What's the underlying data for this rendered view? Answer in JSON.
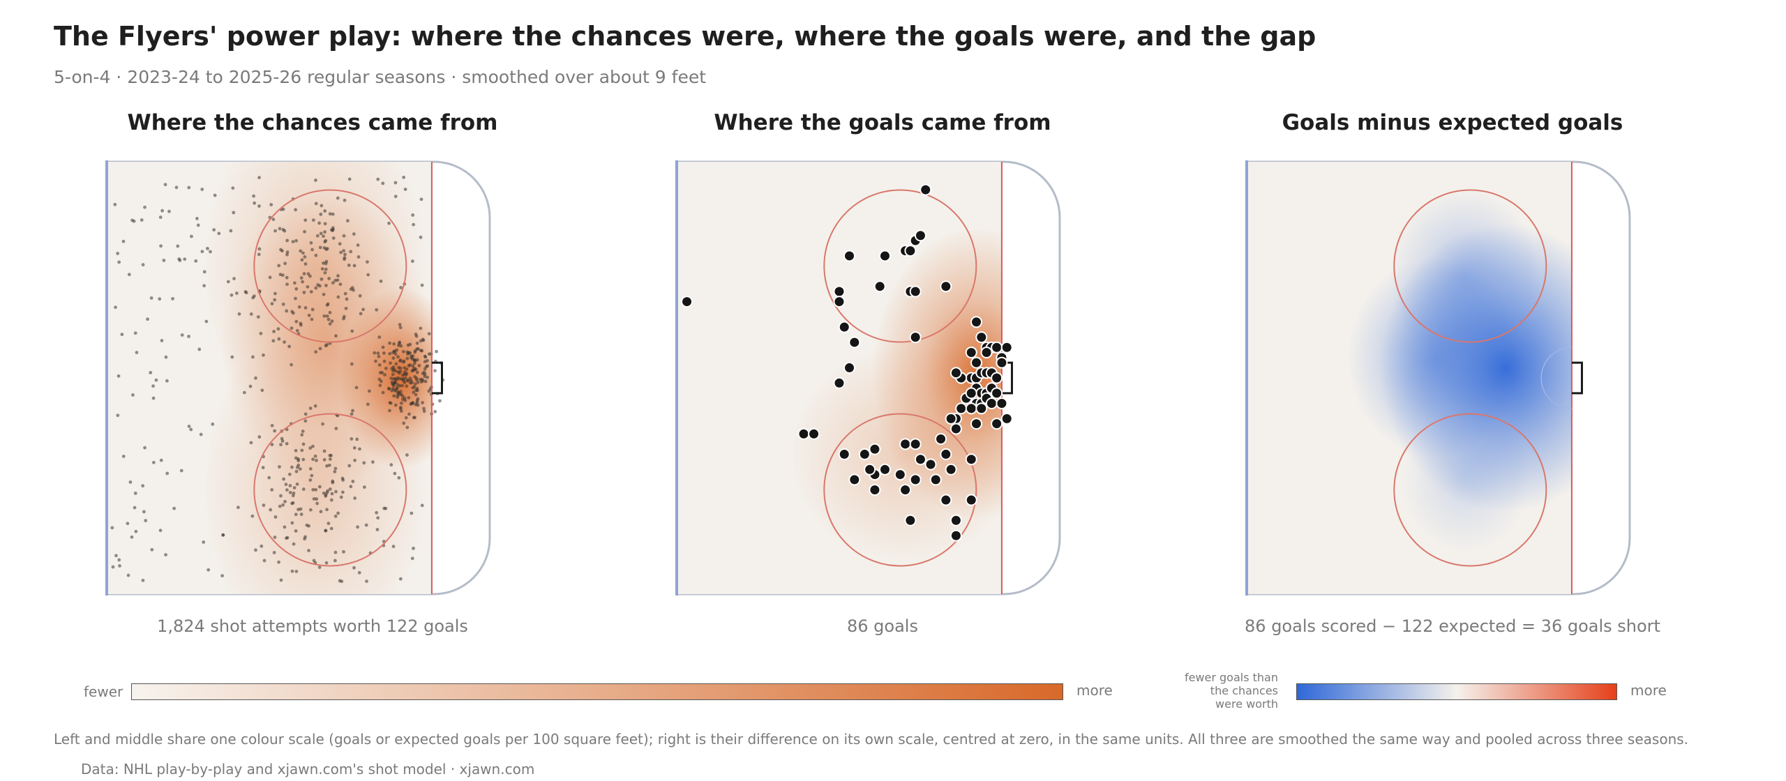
{
  "title": "The Flyers' power play: where the chances were, where the goals were, and the gap",
  "subtitle": "5-on-4 · 2023-24 to 2025-26 regular seasons · smoothed over about 9 feet",
  "panels": [
    {
      "title": "Where the chances came from",
      "caption": "1,824 shot attempts worth 122 goals"
    },
    {
      "title": "Where the goals came from",
      "caption": "86 goals"
    },
    {
      "title": "Goals minus expected goals",
      "caption": "86 goals scored − 122 expected = 36 goals short"
    }
  ],
  "legend_shared": {
    "low_label": "fewer",
    "high_label": "more",
    "colors": [
      "#f7f3ee",
      "#d8692a"
    ]
  },
  "legend_diff": {
    "low_label": "fewer goals than the chances were worth",
    "low_lines": [
      "fewer goals than",
      "the chances",
      "were worth"
    ],
    "high_label": "more",
    "colors": [
      "#2f68d8",
      "#f5f1ec",
      "#e5401a"
    ]
  },
  "footnote": "Left and middle share one colour scale (goals or expected goals per 100 square feet); right is their difference on its own scale, centred at zero, in the same units. All three are smoothed the same way and pooled across three seasons.",
  "source": "Data: NHL play-by-play and xjawn.com's shot model · xjawn.com",
  "colors": {
    "blue_line": "#8ea4d6",
    "goal_line": "#d45b5b",
    "faceoff_circle": "#d9776b",
    "boards": "#b4bcc8",
    "ice": "#f4f1ec",
    "heat": "#d8692a",
    "diff_negative": "#2f68d8"
  },
  "chart_data": [
    {
      "type": "scatter",
      "title": "Where the chances came from",
      "description_label": "1,824 shot attempts worth 122 goals",
      "shot_attempts": 1824,
      "expected_goals": 122,
      "units": "feet (x: distance from centre ice toward goal, y: lateral)",
      "xlim": [
        25,
        100
      ],
      "ylim": [
        -42.5,
        42.5
      ],
      "density_hotspots": [
        {
          "x": 83,
          "y": 0,
          "intensity": 1.0
        },
        {
          "x": 68,
          "y": 7,
          "intensity": 0.45
        },
        {
          "x": 66,
          "y": -22,
          "intensity": 0.3
        },
        {
          "x": 66,
          "y": 22,
          "intensity": 0.3
        }
      ]
    },
    {
      "type": "scatter",
      "title": "Where the goals came from",
      "description_label": "86 goals",
      "goals": 86,
      "units": "feet",
      "xlim": [
        25,
        100
      ],
      "ylim": [
        -42.5,
        42.5
      ],
      "points": [
        [
          74,
          37
        ],
        [
          72,
          27
        ],
        [
          73,
          28
        ],
        [
          70,
          25
        ],
        [
          71,
          25
        ],
        [
          66,
          24
        ],
        [
          59,
          24
        ],
        [
          78,
          18
        ],
        [
          65,
          18
        ],
        [
          71,
          17
        ],
        [
          57,
          17
        ],
        [
          57,
          15
        ],
        [
          72,
          17
        ],
        [
          27,
          15
        ],
        [
          58,
          10
        ],
        [
          84,
          11
        ],
        [
          72,
          8
        ],
        [
          60,
          7
        ],
        [
          85,
          8
        ],
        [
          59,
          2
        ],
        [
          86,
          6
        ],
        [
          87,
          6
        ],
        [
          86,
          5
        ],
        [
          88,
          6
        ],
        [
          90,
          6
        ],
        [
          83,
          5
        ],
        [
          89,
          4
        ],
        [
          89,
          3
        ],
        [
          84,
          3
        ],
        [
          57,
          -1
        ],
        [
          83,
          0
        ],
        [
          84,
          0
        ],
        [
          81,
          0
        ],
        [
          80,
          1
        ],
        [
          85,
          1
        ],
        [
          86,
          1
        ],
        [
          87,
          1
        ],
        [
          88,
          0
        ],
        [
          84,
          -2
        ],
        [
          85,
          -3
        ],
        [
          86,
          -3
        ],
        [
          87,
          -2
        ],
        [
          88,
          -3
        ],
        [
          82,
          -4
        ],
        [
          83,
          -3
        ],
        [
          84,
          -5
        ],
        [
          85,
          -5
        ],
        [
          86,
          -4
        ],
        [
          87,
          -5
        ],
        [
          89,
          -5
        ],
        [
          81,
          -6
        ],
        [
          83,
          -6
        ],
        [
          85,
          -6
        ],
        [
          80,
          -8
        ],
        [
          79,
          -8
        ],
        [
          84,
          -9
        ],
        [
          88,
          -9
        ],
        [
          80,
          -10
        ],
        [
          90,
          -8
        ],
        [
          70,
          -13
        ],
        [
          72,
          -13
        ],
        [
          62,
          -15
        ],
        [
          50,
          -11
        ],
        [
          52,
          -11
        ],
        [
          58,
          -15
        ],
        [
          77,
          -12
        ],
        [
          78,
          -15
        ],
        [
          83,
          -16
        ],
        [
          79,
          -18
        ],
        [
          73,
          -16
        ],
        [
          75,
          -17
        ],
        [
          64,
          -14
        ],
        [
          69,
          -19
        ],
        [
          76,
          -20
        ],
        [
          72,
          -20
        ],
        [
          64,
          -19
        ],
        [
          63,
          -18
        ],
        [
          66,
          -18
        ],
        [
          60,
          -20
        ],
        [
          64,
          -22
        ],
        [
          70,
          -22
        ],
        [
          83,
          -24
        ],
        [
          78,
          -24
        ],
        [
          71,
          -28
        ],
        [
          80,
          -28
        ],
        [
          80,
          -31
        ]
      ]
    },
    {
      "type": "heatmap",
      "title": "Goals minus expected goals",
      "description_label": "86 goals scored − 122 expected = 36 goals short",
      "goals_scored": 86,
      "expected_goals": 122,
      "difference": -36,
      "units": "goals per 100 square feet, centred at zero",
      "xlim": [
        25,
        100
      ],
      "ylim": [
        -42.5,
        42.5
      ],
      "regions": [
        {
          "x": 76,
          "y": 2,
          "value": -1.0
        },
        {
          "x": 62,
          "y": 4,
          "value": -0.5
        },
        {
          "x": 68,
          "y": 20,
          "value": -0.35
        },
        {
          "x": 68,
          "y": -20,
          "value": -0.2
        }
      ]
    }
  ]
}
